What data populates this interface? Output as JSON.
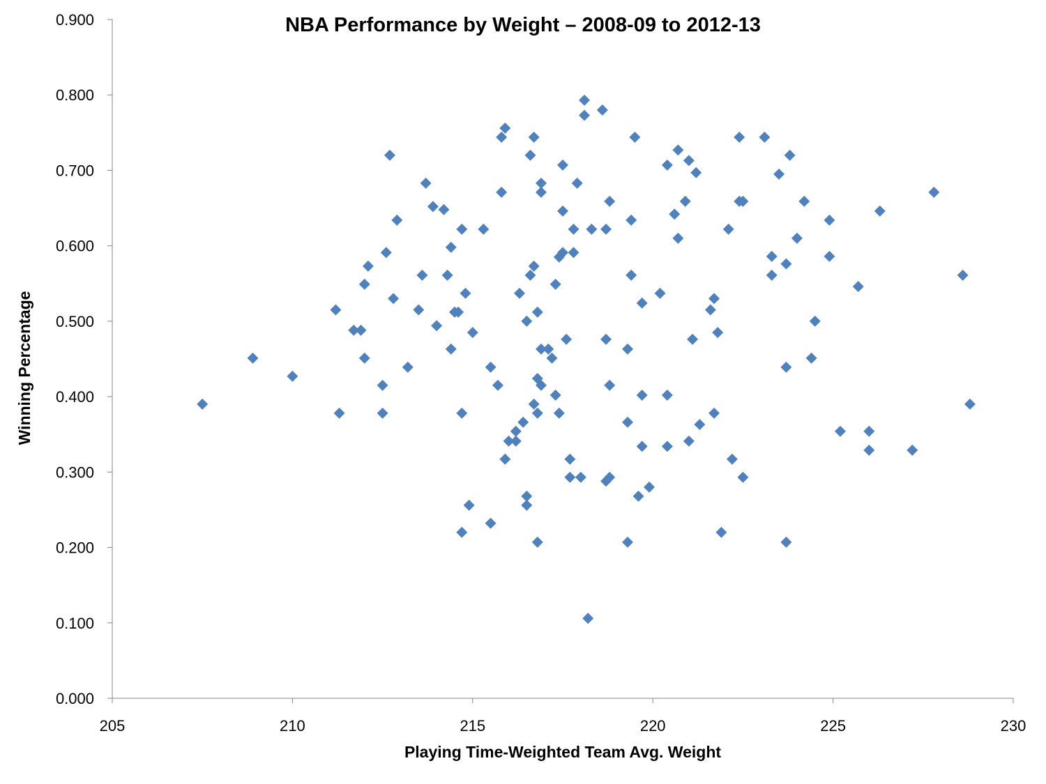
{
  "chart_data": {
    "type": "scatter",
    "title": "NBA Performance by Weight – 2008-09 to 2012-13",
    "xlabel": "Playing Time-Weighted Team Avg. Weight",
    "ylabel": "Winning Percentage",
    "xlim": [
      205,
      230
    ],
    "ylim": [
      0,
      0.9
    ],
    "x_ticks": [
      "205",
      "210",
      "215",
      "220",
      "225",
      "230"
    ],
    "y_ticks": [
      "0.000",
      "0.100",
      "0.200",
      "0.300",
      "0.400",
      "0.500",
      "0.600",
      "0.700",
      "0.800",
      "0.900"
    ],
    "grid": false,
    "legend": "none",
    "marker_color": "#4F81BD",
    "marker": "diamond",
    "points": [
      [
        207.5,
        0.39
      ],
      [
        208.9,
        0.451
      ],
      [
        210.0,
        0.427
      ],
      [
        211.2,
        0.515
      ],
      [
        211.3,
        0.378
      ],
      [
        211.7,
        0.488
      ],
      [
        211.9,
        0.488
      ],
      [
        212.0,
        0.549
      ],
      [
        212.0,
        0.451
      ],
      [
        212.1,
        0.573
      ],
      [
        212.5,
        0.415
      ],
      [
        212.5,
        0.378
      ],
      [
        212.6,
        0.591
      ],
      [
        212.7,
        0.72
      ],
      [
        212.8,
        0.53
      ],
      [
        212.9,
        0.634
      ],
      [
        213.2,
        0.439
      ],
      [
        213.5,
        0.515
      ],
      [
        213.6,
        0.561
      ],
      [
        213.7,
        0.683
      ],
      [
        213.9,
        0.652
      ],
      [
        214.0,
        0.494
      ],
      [
        214.2,
        0.648
      ],
      [
        214.3,
        0.561
      ],
      [
        214.4,
        0.598
      ],
      [
        214.4,
        0.463
      ],
      [
        214.5,
        0.512
      ],
      [
        214.6,
        0.512
      ],
      [
        214.7,
        0.622
      ],
      [
        214.7,
        0.22
      ],
      [
        214.7,
        0.378
      ],
      [
        214.8,
        0.537
      ],
      [
        214.9,
        0.256
      ],
      [
        215.0,
        0.485
      ],
      [
        215.3,
        0.622
      ],
      [
        215.5,
        0.439
      ],
      [
        215.5,
        0.232
      ],
      [
        215.7,
        0.415
      ],
      [
        215.8,
        0.671
      ],
      [
        215.8,
        0.744
      ],
      [
        215.9,
        0.756
      ],
      [
        215.9,
        0.317
      ],
      [
        216.0,
        0.341
      ],
      [
        216.2,
        0.341
      ],
      [
        216.2,
        0.354
      ],
      [
        216.3,
        0.537
      ],
      [
        216.4,
        0.366
      ],
      [
        216.5,
        0.5
      ],
      [
        216.5,
        0.268
      ],
      [
        216.5,
        0.256
      ],
      [
        216.6,
        0.72
      ],
      [
        216.6,
        0.561
      ],
      [
        216.7,
        0.744
      ],
      [
        216.7,
        0.39
      ],
      [
        216.7,
        0.573
      ],
      [
        216.8,
        0.512
      ],
      [
        216.8,
        0.424
      ],
      [
        216.8,
        0.378
      ],
      [
        216.8,
        0.207
      ],
      [
        216.9,
        0.683
      ],
      [
        216.9,
        0.671
      ],
      [
        216.9,
        0.463
      ],
      [
        216.9,
        0.415
      ],
      [
        217.1,
        0.463
      ],
      [
        217.2,
        0.451
      ],
      [
        217.3,
        0.402
      ],
      [
        217.3,
        0.549
      ],
      [
        217.4,
        0.585
      ],
      [
        217.4,
        0.378
      ],
      [
        217.5,
        0.707
      ],
      [
        217.5,
        0.591
      ],
      [
        217.5,
        0.646
      ],
      [
        217.6,
        0.476
      ],
      [
        217.7,
        0.317
      ],
      [
        217.7,
        0.293
      ],
      [
        217.8,
        0.622
      ],
      [
        217.8,
        0.591
      ],
      [
        217.9,
        0.683
      ],
      [
        218.0,
        0.293
      ],
      [
        218.1,
        0.793
      ],
      [
        218.1,
        0.773
      ],
      [
        218.2,
        0.106
      ],
      [
        218.3,
        0.622
      ],
      [
        218.6,
        0.78
      ],
      [
        218.7,
        0.622
      ],
      [
        218.7,
        0.476
      ],
      [
        218.7,
        0.288
      ],
      [
        218.8,
        0.659
      ],
      [
        218.8,
        0.415
      ],
      [
        218.8,
        0.293
      ],
      [
        219.3,
        0.463
      ],
      [
        219.3,
        0.366
      ],
      [
        219.3,
        0.207
      ],
      [
        219.4,
        0.561
      ],
      [
        219.4,
        0.634
      ],
      [
        219.5,
        0.744
      ],
      [
        219.6,
        0.268
      ],
      [
        219.7,
        0.524
      ],
      [
        219.7,
        0.402
      ],
      [
        219.7,
        0.334
      ],
      [
        219.9,
        0.28
      ],
      [
        220.2,
        0.537
      ],
      [
        220.4,
        0.707
      ],
      [
        220.4,
        0.402
      ],
      [
        220.4,
        0.334
      ],
      [
        220.6,
        0.642
      ],
      [
        220.7,
        0.727
      ],
      [
        220.7,
        0.61
      ],
      [
        220.9,
        0.659
      ],
      [
        221.0,
        0.713
      ],
      [
        221.0,
        0.341
      ],
      [
        221.1,
        0.476
      ],
      [
        221.2,
        0.697
      ],
      [
        221.3,
        0.363
      ],
      [
        221.6,
        0.515
      ],
      [
        221.7,
        0.53
      ],
      [
        221.7,
        0.378
      ],
      [
        221.8,
        0.485
      ],
      [
        221.9,
        0.22
      ],
      [
        222.1,
        0.622
      ],
      [
        222.2,
        0.317
      ],
      [
        222.4,
        0.744
      ],
      [
        222.4,
        0.659
      ],
      [
        222.5,
        0.659
      ],
      [
        222.5,
        0.293
      ],
      [
        223.1,
        0.744
      ],
      [
        223.3,
        0.586
      ],
      [
        223.3,
        0.561
      ],
      [
        223.5,
        0.695
      ],
      [
        223.7,
        0.576
      ],
      [
        223.7,
        0.439
      ],
      [
        223.7,
        0.207
      ],
      [
        223.8,
        0.72
      ],
      [
        224.0,
        0.61
      ],
      [
        224.2,
        0.659
      ],
      [
        224.4,
        0.451
      ],
      [
        224.5,
        0.5
      ],
      [
        224.9,
        0.634
      ],
      [
        224.9,
        0.586
      ],
      [
        225.2,
        0.354
      ],
      [
        225.7,
        0.546
      ],
      [
        226.0,
        0.354
      ],
      [
        226.0,
        0.329
      ],
      [
        226.3,
        0.646
      ],
      [
        227.2,
        0.329
      ],
      [
        227.8,
        0.671
      ],
      [
        228.6,
        0.561
      ],
      [
        228.8,
        0.39
      ]
    ]
  }
}
